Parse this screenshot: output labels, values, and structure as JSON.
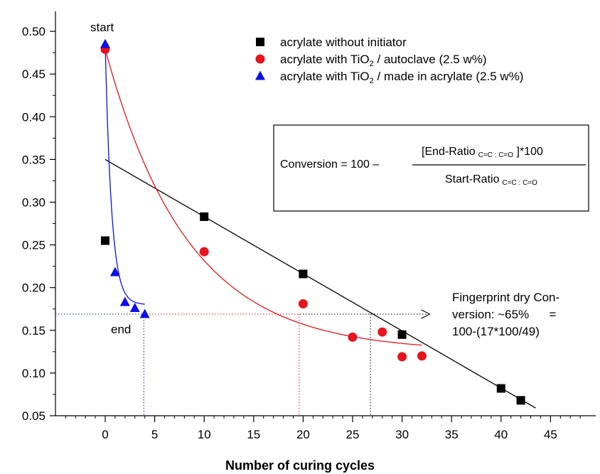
{
  "chart_data": {
    "type": "scatter",
    "xlabel": "Number of curing cycles",
    "ylabel": "",
    "xlim": [
      -4,
      48
    ],
    "ylim": [
      0.05,
      0.52
    ],
    "xticks": [
      "0",
      "5",
      "10",
      "15",
      "20",
      "25",
      "30",
      "35",
      "40",
      "45"
    ],
    "yticks": [
      "0.05",
      "0.10",
      "0.15",
      "0.20",
      "0.25",
      "0.30",
      "0.35",
      "0.40",
      "0.45",
      "0.50"
    ],
    "grid": false,
    "legend_position": "top-right",
    "series": [
      {
        "name": "acrylate without initiator",
        "marker": "square",
        "color": "#000000",
        "points": [
          [
            0,
            0.255
          ],
          [
            10,
            0.283
          ],
          [
            20,
            0.216
          ],
          [
            30,
            0.145
          ],
          [
            40,
            0.082
          ],
          [
            42,
            0.068
          ]
        ]
      },
      {
        "name": "acrylate with TiO₂ / autoclave (2.5 w%)",
        "name_parts": {
          "before": "acrylate with TiO",
          "sub": "2",
          "after": " / autoclave (2.5 w%)"
        },
        "marker": "circle",
        "color": "#e8141b",
        "points": [
          [
            0,
            0.479
          ],
          [
            10,
            0.242
          ],
          [
            20,
            0.181
          ],
          [
            25,
            0.142
          ],
          [
            28,
            0.148
          ],
          [
            30,
            0.119
          ],
          [
            32,
            0.12
          ]
        ]
      },
      {
        "name": "acrylate with TiO₂ / made in acrylate (2.5 w%)",
        "name_parts": {
          "before": "acrylate with TiO",
          "sub": "2",
          "after": " / made in acrylate (2.5 w%)"
        },
        "marker": "triangle",
        "color": "#0a10e6",
        "points": [
          [
            0,
            0.485
          ],
          [
            1,
            0.218
          ],
          [
            2,
            0.183
          ],
          [
            3,
            0.176
          ],
          [
            4,
            0.169
          ]
        ]
      }
    ],
    "fits": [
      {
        "series": 0,
        "kind": "linear",
        "color": "#000000",
        "points": [
          [
            0,
            0.35
          ],
          [
            43.5,
            0.059
          ]
        ]
      },
      {
        "series": 1,
        "kind": "exp_decay",
        "color": "#e8141b",
        "a": 0.354,
        "k": 0.12,
        "c": 0.125,
        "x_range": [
          0,
          32
        ]
      },
      {
        "series": 2,
        "kind": "exp_decay",
        "color": "#0a10e6",
        "a": 0.305,
        "k": 1.55,
        "c": 0.18,
        "x_range": [
          0,
          4
        ]
      }
    ],
    "guides": {
      "horizontal": {
        "y": 0.169,
        "x_from": -4,
        "x_to_black": 32.5,
        "arrow_x": 32.8
      },
      "verticals": [
        {
          "x": 3.9,
          "color": "#0a10e6"
        },
        {
          "x": 19.6,
          "color": "#e8141b"
        },
        {
          "x": 26.8,
          "color": "#000000"
        }
      ],
      "red_segment": [
        -4,
        19.6
      ],
      "blue_segment": [
        -4,
        3.9
      ]
    },
    "annotations": {
      "start": "start",
      "end": "end",
      "fingerprint": [
        "Fingerprint dry Con-",
        "version: ~65%      =",
        "100-(17*100/49)"
      ]
    },
    "formula": {
      "lhs": "Conversion = 100 –",
      "numerator_before": "[End-Ratio",
      "numerator_sub": "C=C : C=O",
      "numerator_after": " ]*100",
      "denominator_before": "Start-Ratio",
      "denominator_sub": "C=C : C=O"
    }
  }
}
